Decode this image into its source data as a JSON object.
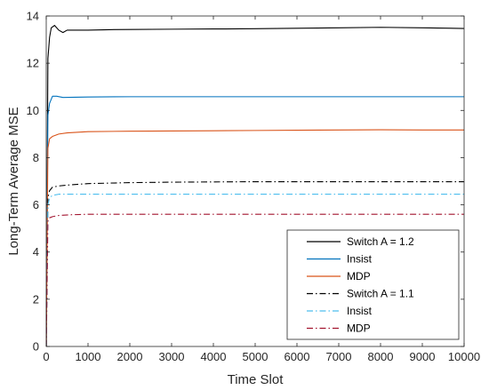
{
  "chart_data": {
    "type": "line",
    "title": "",
    "xlabel": "Time Slot",
    "ylabel": "Long-Term Average MSE",
    "xlim": [
      0,
      10000
    ],
    "ylim": [
      0,
      14
    ],
    "xticks": [
      0,
      1000,
      2000,
      3000,
      4000,
      5000,
      6000,
      7000,
      8000,
      9000,
      10000
    ],
    "yticks": [
      0,
      2,
      4,
      6,
      8,
      10,
      12,
      14
    ],
    "grid": false,
    "legend_position": "bottom-right",
    "series": [
      {
        "name": "Switch A = 1.2",
        "color": "#000000",
        "dash": "solid",
        "x": [
          1,
          40,
          80,
          120,
          200,
          300,
          400,
          500,
          700,
          1000,
          1500,
          2000,
          3000,
          4000,
          5000,
          6000,
          7000,
          8000,
          9000,
          10000
        ],
        "y": [
          0.0,
          12.2,
          13.1,
          13.5,
          13.6,
          13.4,
          13.3,
          13.4,
          13.4,
          13.4,
          13.42,
          13.43,
          13.44,
          13.45,
          13.46,
          13.48,
          13.5,
          13.52,
          13.5,
          13.47
        ]
      },
      {
        "name": "Insist",
        "color": "#0072BD",
        "dash": "solid",
        "x": [
          1,
          40,
          80,
          150,
          250,
          400,
          700,
          1000,
          2000,
          3000,
          4000,
          5000,
          6000,
          7000,
          8000,
          9000,
          10000
        ],
        "y": [
          0.0,
          9.8,
          10.3,
          10.6,
          10.6,
          10.55,
          10.56,
          10.57,
          10.58,
          10.58,
          10.58,
          10.58,
          10.58,
          10.58,
          10.58,
          10.58,
          10.58
        ]
      },
      {
        "name": "MDP",
        "color": "#D95319",
        "dash": "solid",
        "x": [
          1,
          40,
          80,
          150,
          300,
          500,
          1000,
          2000,
          3000,
          4000,
          5000,
          6000,
          7000,
          8000,
          9000,
          10000
        ],
        "y": [
          0.0,
          8.4,
          8.8,
          8.9,
          9.0,
          9.05,
          9.1,
          9.12,
          9.13,
          9.14,
          9.15,
          9.16,
          9.17,
          9.18,
          9.17,
          9.17
        ]
      },
      {
        "name": "Switch A = 1.1",
        "color": "#000000",
        "dash": "dashdot",
        "x": [
          1,
          40,
          80,
          150,
          300,
          600,
          1000,
          2000,
          3000,
          4000,
          5000,
          6000,
          7000,
          8000,
          9000,
          10000
        ],
        "y": [
          0.0,
          6.3,
          6.6,
          6.75,
          6.8,
          6.85,
          6.9,
          6.94,
          6.96,
          6.97,
          6.98,
          6.98,
          6.98,
          6.98,
          6.98,
          6.98
        ]
      },
      {
        "name": "Insist",
        "color": "#4DBEEE",
        "dash": "dashdot",
        "x": [
          1,
          40,
          80,
          150,
          300,
          600,
          1000,
          2000,
          3000,
          4000,
          5000,
          6000,
          7000,
          8000,
          9000,
          10000
        ],
        "y": [
          0.0,
          6.0,
          6.3,
          6.4,
          6.45,
          6.45,
          6.45,
          6.45,
          6.45,
          6.45,
          6.45,
          6.45,
          6.45,
          6.45,
          6.45,
          6.45
        ]
      },
      {
        "name": "MDP",
        "color": "#A2142F",
        "dash": "dashdot",
        "x": [
          1,
          40,
          80,
          150,
          300,
          600,
          1000,
          2000,
          3000,
          4000,
          5000,
          6000,
          7000,
          8000,
          9000,
          10000
        ],
        "y": [
          0.0,
          5.3,
          5.45,
          5.5,
          5.55,
          5.58,
          5.6,
          5.6,
          5.6,
          5.6,
          5.6,
          5.6,
          5.6,
          5.6,
          5.6,
          5.6
        ]
      }
    ]
  }
}
